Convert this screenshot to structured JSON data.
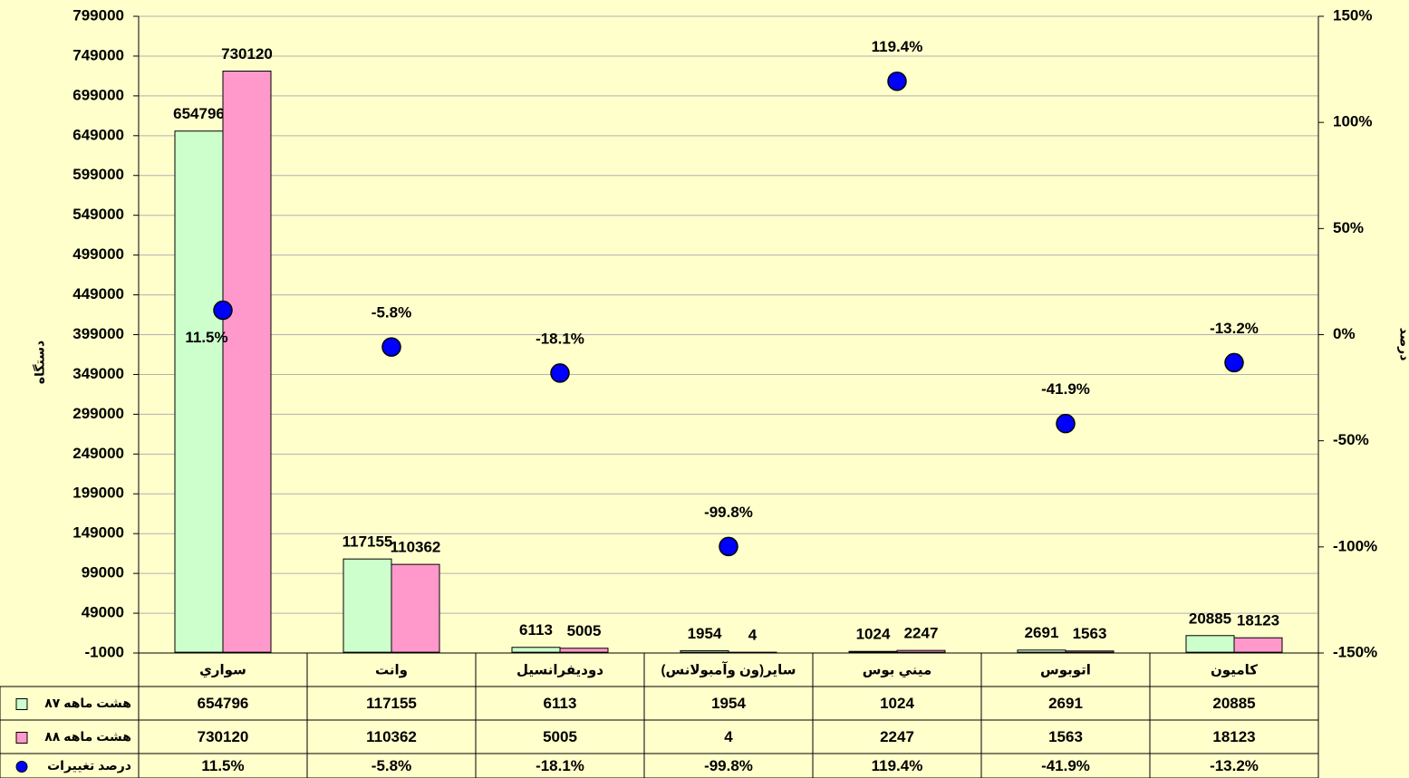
{
  "chart_data": {
    "type": "bar",
    "y_label": "دستگاه",
    "y2_label": "درصد",
    "categories": [
      "سواري",
      "وانت",
      "دوديفرانسيل",
      "ساير(ون وآمبولانس)",
      "ميني بوس",
      "اتوبوس",
      "كاميون"
    ],
    "series": [
      {
        "name": "هشت ماهه ٨٧",
        "color": "#ccffcc",
        "type": "bar",
        "values": [
          654796,
          117155,
          6113,
          1954,
          1024,
          2691,
          20885
        ]
      },
      {
        "name": "هشت ماهه ٨٨",
        "color": "#ff99cc",
        "type": "bar",
        "values": [
          730120,
          110362,
          5005,
          4,
          2247,
          1563,
          18123
        ]
      },
      {
        "name": "درصد تغييرات",
        "color": "#0000ff",
        "type": "scatter",
        "axis": "y2",
        "values": [
          11.5,
          -5.8,
          -18.1,
          -99.8,
          119.4,
          -41.9,
          -13.2
        ],
        "value_labels": [
          "11.5%",
          "-5.8%",
          "-18.1%",
          "-99.8%",
          "119.4%",
          "-41.9%",
          "-13.2%"
        ]
      }
    ],
    "ylim": [
      -1000,
      799000
    ],
    "yticks": [
      -1000,
      49000,
      99000,
      149000,
      199000,
      249000,
      299000,
      349000,
      399000,
      449000,
      499000,
      549000,
      599000,
      649000,
      699000,
      749000,
      799000
    ],
    "y2lim": [
      -150,
      150
    ],
    "y2ticks": [
      {
        "value": -150,
        "label": "-150%"
      },
      {
        "value": -100,
        "label": "-100%"
      },
      {
        "value": -50,
        "label": "-50%"
      },
      {
        "value": 0,
        "label": "0%"
      },
      {
        "value": 50,
        "label": "50%"
      },
      {
        "value": 100,
        "label": "100%"
      },
      {
        "value": 150,
        "label": "150%"
      }
    ],
    "grid": true,
    "data_table": true
  }
}
